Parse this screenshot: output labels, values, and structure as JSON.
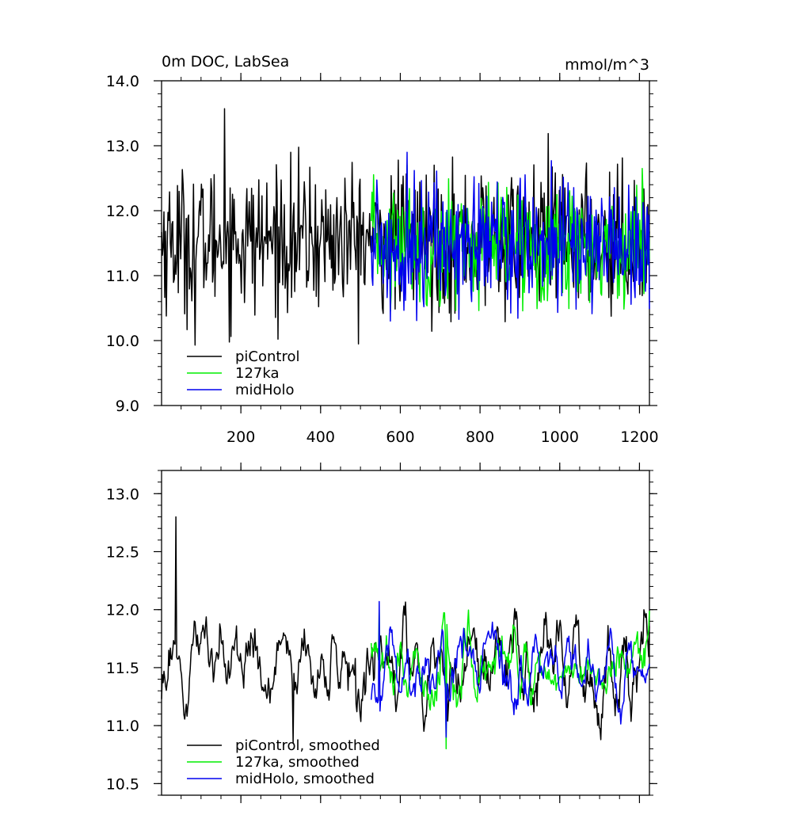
{
  "chart_data": [
    {
      "type": "line",
      "title_left": "0m DOC, LabSea",
      "title_right": "mmol/m^3",
      "ylim": [
        9.0,
        14.0
      ],
      "yticks": [
        9.0,
        10.0,
        11.0,
        12.0,
        13.0,
        14.0
      ],
      "ytick_labels": [
        "9.0",
        "10.0",
        "11.0",
        "12.0",
        "13.0",
        "14.0"
      ],
      "xlim": [
        1,
        1225
      ],
      "xticks": [
        200,
        400,
        600,
        800,
        1000,
        1200
      ],
      "xtick_labels": [
        "200",
        "400",
        "600",
        "800",
        "1000",
        "1200"
      ],
      "legend_position": "bottom-left",
      "grid": false,
      "series": [
        {
          "name": "piControl",
          "color": "#000000",
          "x_range": [
            1,
            1225
          ],
          "mean": 11.55,
          "amplitude": 0.55,
          "min": 9.93,
          "max": 13.57
        },
        {
          "name": "127ka",
          "color": "#00ee00",
          "x_range": [
            527,
            1225
          ],
          "mean": 11.5,
          "amplitude": 0.45,
          "min": 10.45,
          "max": 12.7
        },
        {
          "name": "midHolo",
          "color": "#0000ee",
          "x_range": [
            527,
            1225
          ],
          "mean": 11.5,
          "amplitude": 0.5,
          "min": 10.3,
          "max": 12.9
        }
      ]
    },
    {
      "type": "line",
      "ylim": [
        10.4,
        13.2
      ],
      "yticks": [
        10.5,
        11.0,
        11.5,
        12.0,
        12.5,
        13.0
      ],
      "ytick_labels": [
        "10.5",
        "11.0",
        "11.5",
        "12.0",
        "12.5",
        "13.0"
      ],
      "xlim": [
        1,
        1225
      ],
      "xticks": [
        200,
        400,
        600,
        800,
        1000,
        1200
      ],
      "legend_position": "bottom-left",
      "grid": false,
      "series": [
        {
          "name": "piControl, smoothed",
          "color": "#000000",
          "x_range": [
            1,
            1225
          ],
          "mean": 11.55,
          "amplitude": 0.3,
          "min": 10.85,
          "max": 12.8
        },
        {
          "name": "127ka, smoothed",
          "color": "#00ee00",
          "x_range": [
            527,
            1225
          ],
          "mean": 11.5,
          "amplitude": 0.22,
          "min": 10.8,
          "max": 12.0
        },
        {
          "name": "midHolo, smoothed",
          "color": "#0000ee",
          "x_range": [
            527,
            1225
          ],
          "mean": 11.5,
          "amplitude": 0.25,
          "min": 10.9,
          "max": 12.07
        }
      ]
    }
  ]
}
